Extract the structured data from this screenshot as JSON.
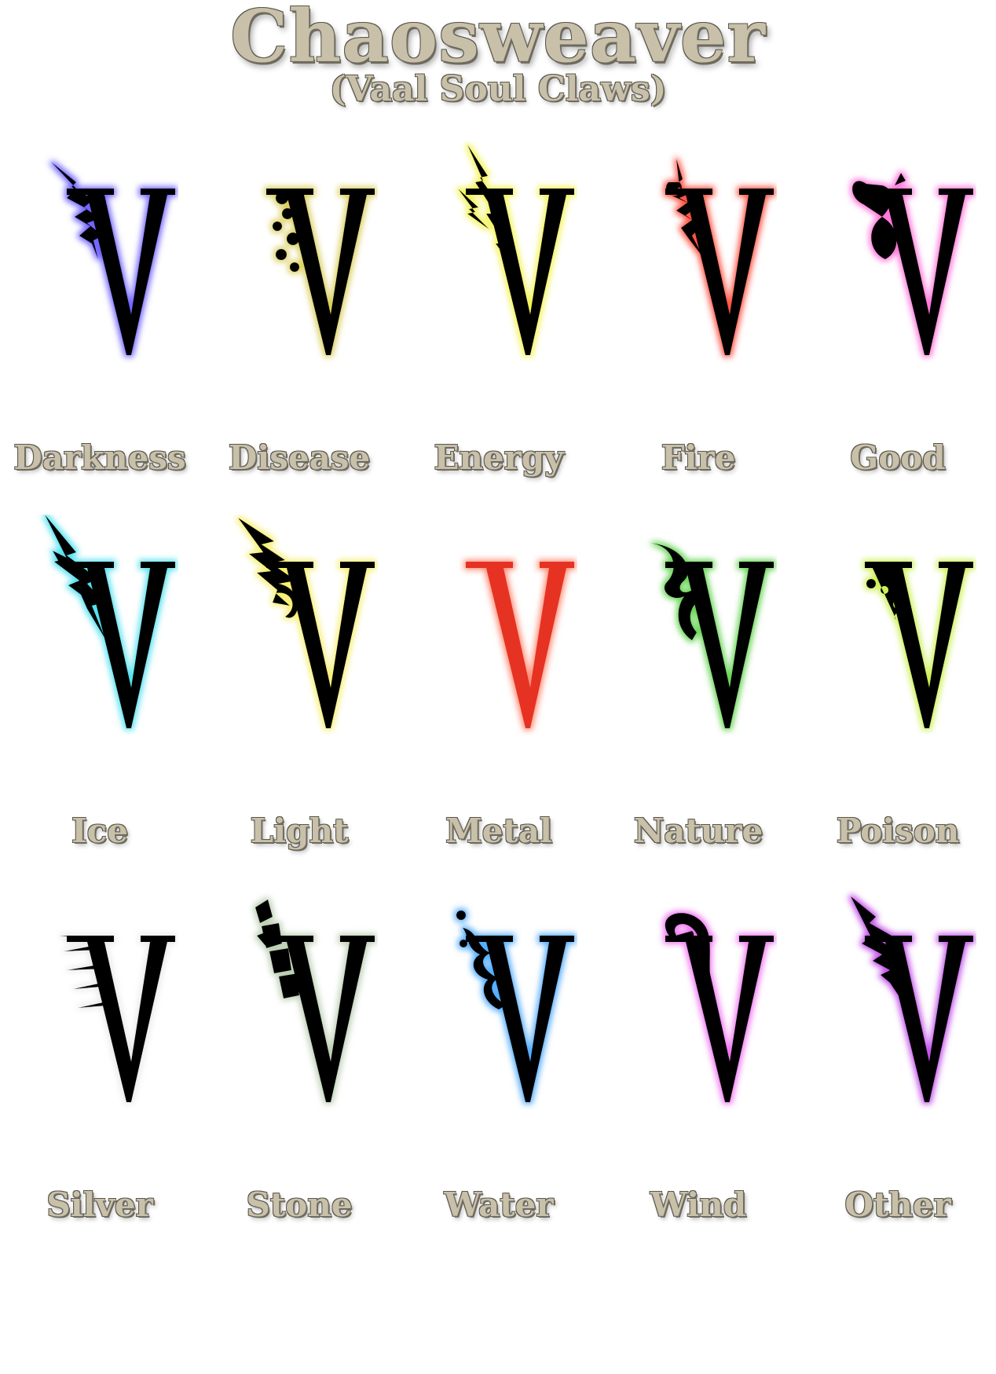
{
  "header": {
    "title": "Chaosweaver",
    "subtitle": "(Vaal Soul Claws)"
  },
  "symbols": [
    {
      "label": "Darkness",
      "glow": "#6a5cff",
      "fill": "#000000",
      "icon": "claw-v-darkness-icon",
      "accent": "spikes"
    },
    {
      "label": "Disease",
      "glow": "#d8cc55",
      "fill": "#000000",
      "icon": "claw-v-disease-icon",
      "accent": "blobs"
    },
    {
      "label": "Energy",
      "glow": "#f2f24a",
      "fill": "#000000",
      "icon": "claw-v-energy-icon",
      "accent": "bolts"
    },
    {
      "label": "Fire",
      "glow": "#ff4a3a",
      "fill": "#000000",
      "icon": "claw-v-fire-icon",
      "accent": "flame"
    },
    {
      "label": "Good",
      "glow": "#ff6ed8",
      "fill": "#000000",
      "icon": "claw-v-good-icon",
      "accent": "heart"
    },
    {
      "label": "Ice",
      "glow": "#4ae0ee",
      "fill": "#000000",
      "icon": "claw-v-ice-icon",
      "accent": "shards"
    },
    {
      "label": "Light",
      "glow": "#f5ee6a",
      "fill": "#000000",
      "icon": "claw-v-light-icon",
      "accent": "wing"
    },
    {
      "label": "Metal",
      "glow": "#ff8870",
      "fill": "#e63324",
      "icon": "claw-v-metal-icon",
      "accent": "none"
    },
    {
      "label": "Nature",
      "glow": "#5ed24a",
      "fill": "#000000",
      "icon": "claw-v-nature-icon",
      "accent": "vine"
    },
    {
      "label": "Poison",
      "glow": "#c8f04a",
      "fill": "#000000",
      "icon": "claw-v-poison-icon",
      "accent": "drips"
    },
    {
      "label": "Silver",
      "glow": "#e8e8e8",
      "fill": "#000000",
      "icon": "claw-v-silver-icon",
      "accent": "stripes"
    },
    {
      "label": "Stone",
      "glow": "#b8ccb0",
      "fill": "#000000",
      "icon": "claw-v-stone-icon",
      "accent": "rocks"
    },
    {
      "label": "Water",
      "glow": "#4aa8ff",
      "fill": "#000000",
      "icon": "claw-v-water-icon",
      "accent": "splash"
    },
    {
      "label": "Wind",
      "glow": "#ee6ef0",
      "fill": "#000000",
      "icon": "claw-v-wind-icon",
      "accent": "swirl"
    },
    {
      "label": "Other",
      "glow": "#c04ae8",
      "fill": "#000000",
      "icon": "claw-v-other-icon",
      "accent": "flare"
    }
  ]
}
